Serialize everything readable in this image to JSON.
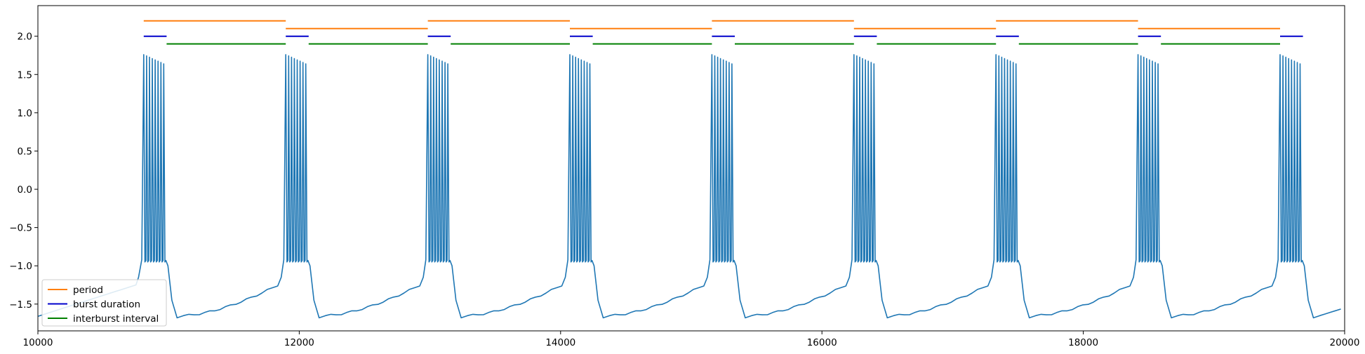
{
  "chart_data": {
    "type": "line",
    "title": "",
    "xlabel": "",
    "ylabel": "",
    "xlim": [
      10000,
      20000
    ],
    "ylim": [
      -1.85,
      2.4
    ],
    "x_ticks": [
      10000,
      12000,
      14000,
      16000,
      18000,
      20000
    ],
    "x_tick_labels": [
      "10000",
      "12000",
      "14000",
      "16000",
      "18000",
      "20000"
    ],
    "y_ticks": [
      -1.5,
      -1.0,
      -0.5,
      0.0,
      0.5,
      1.0,
      1.5,
      2.0
    ],
    "y_tick_labels": [
      "−1.5",
      "−1.0",
      "−0.5",
      "0.0",
      "0.5",
      "1.0",
      "1.5",
      "2.0"
    ],
    "grid": false,
    "legend_position": "lower-left",
    "legend": [
      {
        "label": "period",
        "color": "#ff7f0e"
      },
      {
        "label": "burst duration",
        "color": "#0000cc"
      },
      {
        "label": "interburst interval",
        "color": "#008000"
      }
    ],
    "trace": {
      "color": "#1f77b4",
      "burst_onsets": [
        10810,
        11897,
        12984,
        14071,
        15158,
        16245,
        17332,
        18419,
        19506
      ],
      "burst_duration": 175,
      "spikes_per_burst": 8,
      "spike_peak_start": 1.76,
      "spike_peak_end": 1.64,
      "spike_trough": -0.95,
      "post_burst_min": -1.68,
      "pre_burst_level": -1.25,
      "value_at_start": -1.66,
      "value_at_end": -1.55
    },
    "series": [
      {
        "name": "period",
        "color": "#ff7f0e",
        "segments": [
          {
            "x": [
              10810,
              11897
            ],
            "y": 2.2
          },
          {
            "x": [
              11897,
              12984
            ],
            "y": 2.1
          },
          {
            "x": [
              12984,
              14071
            ],
            "y": 2.2
          },
          {
            "x": [
              14071,
              15158
            ],
            "y": 2.1
          },
          {
            "x": [
              15158,
              16245
            ],
            "y": 2.2
          },
          {
            "x": [
              16245,
              17332
            ],
            "y": 2.1
          },
          {
            "x": [
              17332,
              18419
            ],
            "y": 2.2
          },
          {
            "x": [
              18419,
              19506
            ],
            "y": 2.1
          }
        ]
      },
      {
        "name": "burst duration",
        "color": "#0000cc",
        "segments": [
          {
            "x": [
              10810,
              10985
            ],
            "y": 2.0
          },
          {
            "x": [
              11897,
              12072
            ],
            "y": 2.0
          },
          {
            "x": [
              12984,
              13159
            ],
            "y": 2.0
          },
          {
            "x": [
              14071,
              14246
            ],
            "y": 2.0
          },
          {
            "x": [
              15158,
              15333
            ],
            "y": 2.0
          },
          {
            "x": [
              16245,
              16420
            ],
            "y": 2.0
          },
          {
            "x": [
              17332,
              17507
            ],
            "y": 2.0
          },
          {
            "x": [
              18419,
              18594
            ],
            "y": 2.0
          },
          {
            "x": [
              19506,
              19681
            ],
            "y": 2.0
          }
        ]
      },
      {
        "name": "interburst interval",
        "color": "#008000",
        "segments": [
          {
            "x": [
              10985,
              11897
            ],
            "y": 1.9
          },
          {
            "x": [
              12072,
              12984
            ],
            "y": 1.9
          },
          {
            "x": [
              13159,
              14071
            ],
            "y": 1.9
          },
          {
            "x": [
              14246,
              15158
            ],
            "y": 1.9
          },
          {
            "x": [
              15333,
              16245
            ],
            "y": 1.9
          },
          {
            "x": [
              16420,
              17332
            ],
            "y": 1.9
          },
          {
            "x": [
              17507,
              18419
            ],
            "y": 1.9
          },
          {
            "x": [
              18594,
              19506
            ],
            "y": 1.9
          }
        ]
      }
    ]
  }
}
